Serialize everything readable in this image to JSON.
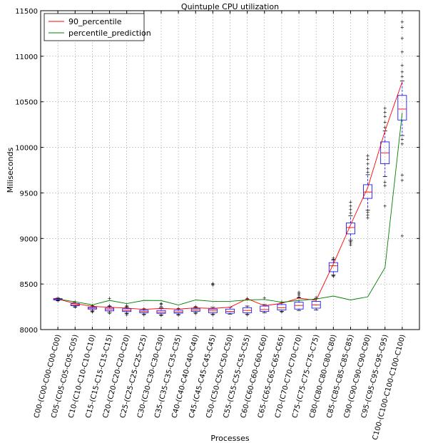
{
  "chart_data": {
    "type": "box",
    "title": "Quintuple CPU utilization",
    "xlabel": "Processes",
    "ylabel": "Miliseconds",
    "ylim": [
      8000,
      11500
    ],
    "yticks": [
      8000,
      8500,
      9000,
      9500,
      10000,
      10500,
      11000,
      11500
    ],
    "grid": true,
    "legend_position": "top-left",
    "categories": [
      "C00-(C00-C00-C00-C00)",
      "C05-(C05-C05-C05-C05)",
      "C10-(C10-C10-C10-C10)",
      "C15-(C15-C15-C15-C15)",
      "C20-(C20-C20-C20-C20)",
      "C25-(C25-C25-C25-C25)",
      "C30-(C30-C30-C30-C30)",
      "C35-(C35-C35-C35-C35)",
      "C40-(C40-C40-C40-C40)",
      "C45-(C45-C45-C45-C45)",
      "C50-(C50-C50-C50-C50)",
      "C55-(C55-C55-C55-C55)",
      "C60-(C60-C60-C60-C60)",
      "C65-(C65-C65-C65-C65)",
      "C70-(C70-C70-C70-C70)",
      "C75-(C75-C75-C75-C75)",
      "C80-(C80-C80-C80-C80)",
      "C85-(C85-C85-C85-C85)",
      "C90-(C90-C90-C90-C90)",
      "C95-(C95-C95-C95-C95)",
      "C100-(C100-C100-C100-C100)"
    ],
    "boxes": [
      {
        "q1": 8325,
        "median": 8333,
        "q3": 8340,
        "whislo": 8320,
        "whishi": 8345,
        "fliers": [
          8318,
          8348
        ]
      },
      {
        "q1": 8262,
        "median": 8272,
        "q3": 8285,
        "whislo": 8250,
        "whishi": 8300,
        "fliers": [
          8245,
          8305
        ]
      },
      {
        "q1": 8225,
        "median": 8235,
        "q3": 8245,
        "whislo": 8205,
        "whishi": 8258,
        "fliers": [
          8195,
          8200,
          8265
        ]
      },
      {
        "q1": 8205,
        "median": 8220,
        "q3": 8235,
        "whislo": 8190,
        "whishi": 8255,
        "fliers": [
          8180,
          8265,
          8345
        ]
      },
      {
        "q1": 8198,
        "median": 8210,
        "q3": 8228,
        "whislo": 8180,
        "whishi": 8245,
        "fliers": [
          8165,
          8175,
          8255,
          8265
        ]
      },
      {
        "q1": 8185,
        "median": 8198,
        "q3": 8212,
        "whislo": 8170,
        "whishi": 8225,
        "fliers": [
          8165,
          8232
        ]
      },
      {
        "q1": 8178,
        "median": 8190,
        "q3": 8210,
        "whislo": 8160,
        "whishi": 8240,
        "fliers": [
          8155,
          8260,
          8280,
          8290
        ]
      },
      {
        "q1": 8180,
        "median": 8193,
        "q3": 8212,
        "whislo": 8165,
        "whishi": 8225,
        "fliers": [
          8160,
          8235
        ]
      },
      {
        "q1": 8200,
        "median": 8215,
        "q3": 8232,
        "whislo": 8185,
        "whishi": 8245,
        "fliers": [
          8175,
          8255
        ]
      },
      {
        "q1": 8185,
        "median": 8205,
        "q3": 8225,
        "whislo": 8170,
        "whishi": 8245,
        "fliers": [
          8165,
          8490,
          8500,
          8510
        ]
      },
      {
        "q1": 8180,
        "median": 8200,
        "q3": 8225,
        "whislo": 8170,
        "whishi": 8245,
        "fliers": []
      },
      {
        "q1": 8185,
        "median": 8210,
        "q3": 8240,
        "whislo": 8170,
        "whishi": 8258,
        "fliers": [
          8165,
          8335,
          8345
        ]
      },
      {
        "q1": 8200,
        "median": 8220,
        "q3": 8258,
        "whislo": 8185,
        "whishi": 8275,
        "fliers": [
          8350
        ]
      },
      {
        "q1": 8215,
        "median": 8240,
        "q3": 8275,
        "whislo": 8200,
        "whishi": 8298,
        "fliers": [
          8195,
          8305
        ]
      },
      {
        "q1": 8225,
        "median": 8265,
        "q3": 8300,
        "whislo": 8210,
        "whishi": 8350,
        "fliers": [
          8360,
          8380,
          8395,
          8410
        ]
      },
      {
        "q1": 8235,
        "median": 8270,
        "q3": 8310,
        "whislo": 8215,
        "whishi": 8340,
        "fliers": [
          8355
        ]
      },
      {
        "q1": 8635,
        "median": 8700,
        "q3": 8735,
        "whislo": 8600,
        "whishi": 8765,
        "fliers": [
          8585,
          8595,
          8775,
          8785
        ]
      },
      {
        "q1": 9050,
        "median": 9120,
        "q3": 9170,
        "whislo": 8980,
        "whishi": 9250,
        "fliers": [
          8930,
          8950,
          8970,
          9280,
          9320,
          9360,
          9400
        ]
      },
      {
        "q1": 9440,
        "median": 9510,
        "q3": 9590,
        "whislo": 9310,
        "whishi": 9700,
        "fliers": [
          9230,
          9260,
          9290,
          9730,
          9770,
          9820,
          9870,
          9910
        ]
      },
      {
        "q1": 9820,
        "median": 9940,
        "q3": 10060,
        "whislo": 9680,
        "whishi": 10180,
        "fliers": [
          9360,
          9580,
          9620,
          10220,
          10280,
          10340,
          10390,
          10430
        ]
      },
      {
        "q1": 10300,
        "median": 10420,
        "q3": 10570,
        "whislo": 10130,
        "whishi": 10730,
        "fliers": [
          9030,
          9640,
          9700,
          10040,
          10090,
          10780,
          10830,
          10900,
          11050,
          11200,
          11320,
          11380
        ]
      }
    ],
    "series": [
      {
        "name": "90_percentile",
        "color": "#ff0000",
        "values": [
          8335,
          8285,
          8255,
          8245,
          8235,
          8222,
          8232,
          8225,
          8238,
          8232,
          8245,
          8338,
          8262,
          8288,
          8345,
          8322,
          8720,
          9150,
          9560,
          10180,
          10720
        ]
      },
      {
        "name": "percentile_prediction",
        "color": "#008000",
        "values": [
          8335,
          8305,
          8272,
          8320,
          8285,
          8320,
          8318,
          8270,
          8325,
          8310,
          8310,
          8325,
          8330,
          8300,
          8320,
          8335,
          8368,
          8325,
          8360,
          8680,
          10380
        ]
      }
    ],
    "box_color": "#0000ff",
    "median_color": "#ff0000"
  }
}
